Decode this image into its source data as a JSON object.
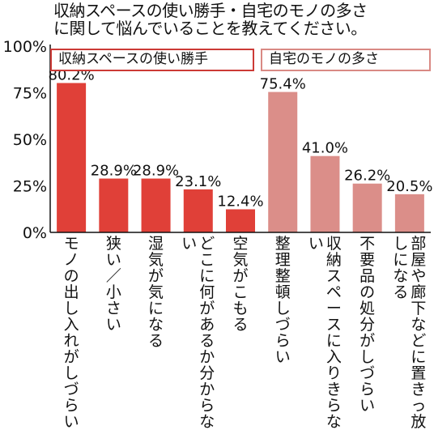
{
  "title_line1": "収納スペースの使い勝手・自宅のモノの多さ",
  "title_line2": "に関して悩んでいることを教えてください。",
  "colors": {
    "group1": "#e04038",
    "group2": "#db8e89"
  },
  "chart_data": {
    "type": "bar",
    "yticks": [
      "100%",
      "75%",
      "50%",
      "25%",
      "0%"
    ],
    "ylim": [
      0,
      100
    ],
    "groups": [
      {
        "name": "収納スペースの使い勝手",
        "categories": [
          "モノの出し入れがしづらい",
          "狭い／小さい",
          "湿気が気になる",
          "どこに何があるか分からない",
          "空気がこもる"
        ],
        "values": [
          80.2,
          28.9,
          28.9,
          23.1,
          12.4
        ],
        "labels": [
          "80.2%",
          "28.9%",
          "28.9%",
          "23.1%",
          "12.4%"
        ]
      },
      {
        "name": "自宅のモノの多さ",
        "categories": [
          "整理整頓しづらい",
          "収納スペースに入りきらない",
          "不要品の処分がしづらい",
          "部屋や廊下などに置きっ放しになる"
        ],
        "values": [
          75.4,
          41.0,
          26.2,
          20.5
        ],
        "labels": [
          "75.4%",
          "41.0%",
          "26.2%",
          "20.5%"
        ]
      }
    ]
  }
}
